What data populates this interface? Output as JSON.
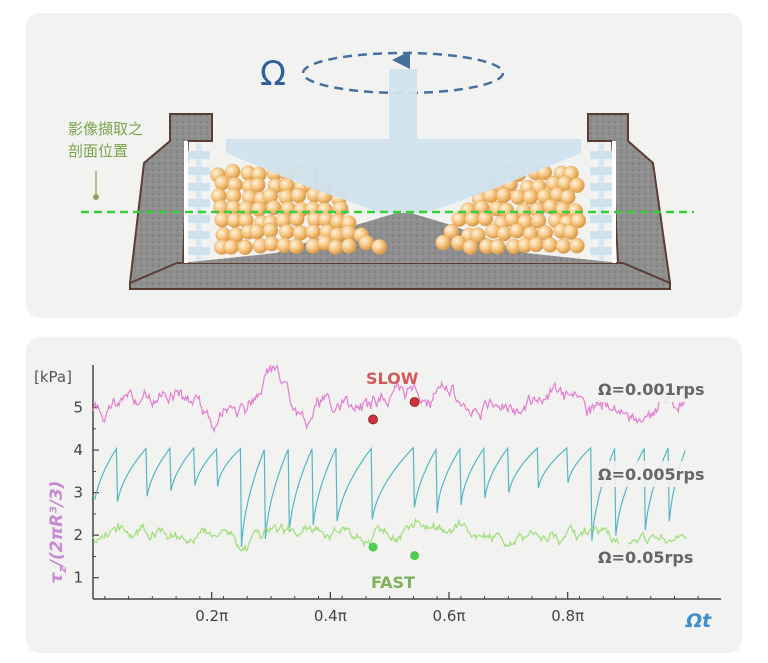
{
  "diagram": {
    "omega_symbol": "Ω",
    "section_label_line1": "影像擷取之",
    "section_label_line2": "剖面位置"
  },
  "chart_data": {
    "type": "line",
    "title": "",
    "xlabel": "Ωt",
    "ylabel": "τz/(2πR³/3)",
    "yunit": "[kPa]",
    "xlim": [
      0,
      1.05
    ],
    "ylim": [
      0.5,
      6.0
    ],
    "xticks": [
      {
        "value": 0.2,
        "label": "0.2π"
      },
      {
        "value": 0.4,
        "label": "0.4π"
      },
      {
        "value": 0.6,
        "label": "0.6π"
      },
      {
        "value": 0.8,
        "label": "0.8π"
      }
    ],
    "yticks": [
      1,
      2,
      3,
      4,
      5
    ],
    "grid": false,
    "annotations": {
      "slow": "SLOW",
      "fast": "FAST"
    },
    "series": [
      {
        "name": "Ω=0.001rps",
        "color": "#e27fcf",
        "base": 5.05,
        "noise": 0.18,
        "bumps": [
          [
            0.13,
            0.35
          ],
          [
            0.3,
            0.65
          ],
          [
            0.52,
            0.4
          ],
          [
            0.6,
            0.3
          ],
          [
            0.77,
            0.3
          ]
        ],
        "dips": [
          [
            0.2,
            0.3
          ],
          [
            0.36,
            0.3
          ],
          [
            0.92,
            0.35
          ]
        ]
      },
      {
        "name": "Ω=0.005rps",
        "color": "#54b7c3",
        "sawtooth": true,
        "drops": [
          0.04,
          0.09,
          0.13,
          0.17,
          0.21,
          0.25,
          0.29,
          0.33,
          0.37,
          0.41,
          0.47,
          0.54,
          0.58,
          0.62,
          0.66,
          0.7,
          0.75,
          0.8,
          0.84,
          0.88,
          0.93,
          0.97,
          1.0
        ],
        "peak_min": 4.2,
        "peak_max": 5.1,
        "trough_min": 1.7,
        "trough_max": 3.4
      },
      {
        "name": "Ω=0.05rps",
        "color": "#9fdf7a",
        "base": 2.0,
        "noise": 0.13,
        "bumps": [
          [
            0.04,
            0.15
          ],
          [
            0.55,
            0.45
          ],
          [
            0.62,
            0.2
          ]
        ],
        "dips": [
          [
            0.25,
            0.25
          ],
          [
            0.9,
            0.2
          ]
        ]
      }
    ],
    "markers": [
      {
        "x": 0.472,
        "y": 4.72,
        "color": "#d0313a",
        "kind": "slow"
      },
      {
        "x": 0.542,
        "y": 5.13,
        "color": "#d0313a",
        "kind": "slow"
      },
      {
        "x": 0.472,
        "y": 1.72,
        "color": "#4ecb50",
        "kind": "fast"
      },
      {
        "x": 0.542,
        "y": 1.52,
        "color": "#4ecb50",
        "kind": "fast"
      }
    ]
  }
}
